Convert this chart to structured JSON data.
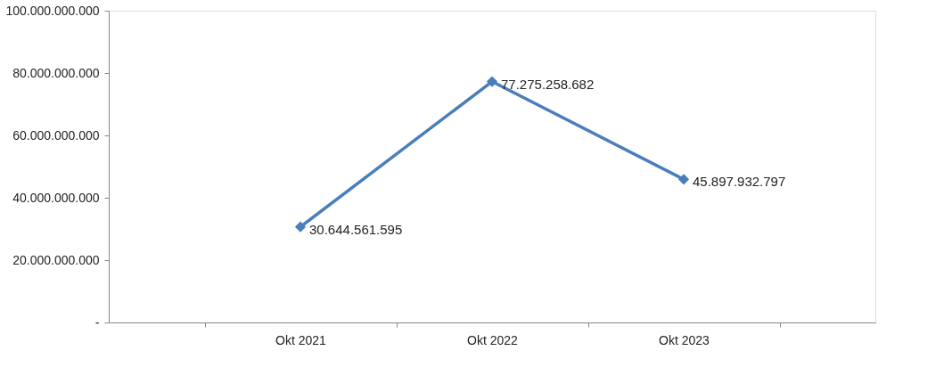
{
  "chart_data": {
    "type": "line",
    "categories": [
      "Okt 2021",
      "Okt 2022",
      "Okt 2023"
    ],
    "series": [
      {
        "color": "#4a7ebb",
        "values": [
          30644561595,
          77275258682,
          45897932797
        ],
        "value_labels": [
          "30.644.561.595",
          "77.275.258.682",
          "45.897.932.797"
        ]
      }
    ],
    "ylim": [
      0,
      100000000000
    ],
    "yticks": [
      {
        "value": 0,
        "label": "-"
      },
      {
        "value": 20000000000,
        "label": "20.000.000.000"
      },
      {
        "value": 40000000000,
        "label": "40.000.000.000"
      },
      {
        "value": 60000000000,
        "label": "60.000.000.000"
      },
      {
        "value": 80000000000,
        "label": "80.000.000.000"
      },
      {
        "value": 100000000000,
        "label": "100.000.000.000"
      }
    ],
    "marker": "diamond",
    "line_style": "solid",
    "grid": false
  }
}
